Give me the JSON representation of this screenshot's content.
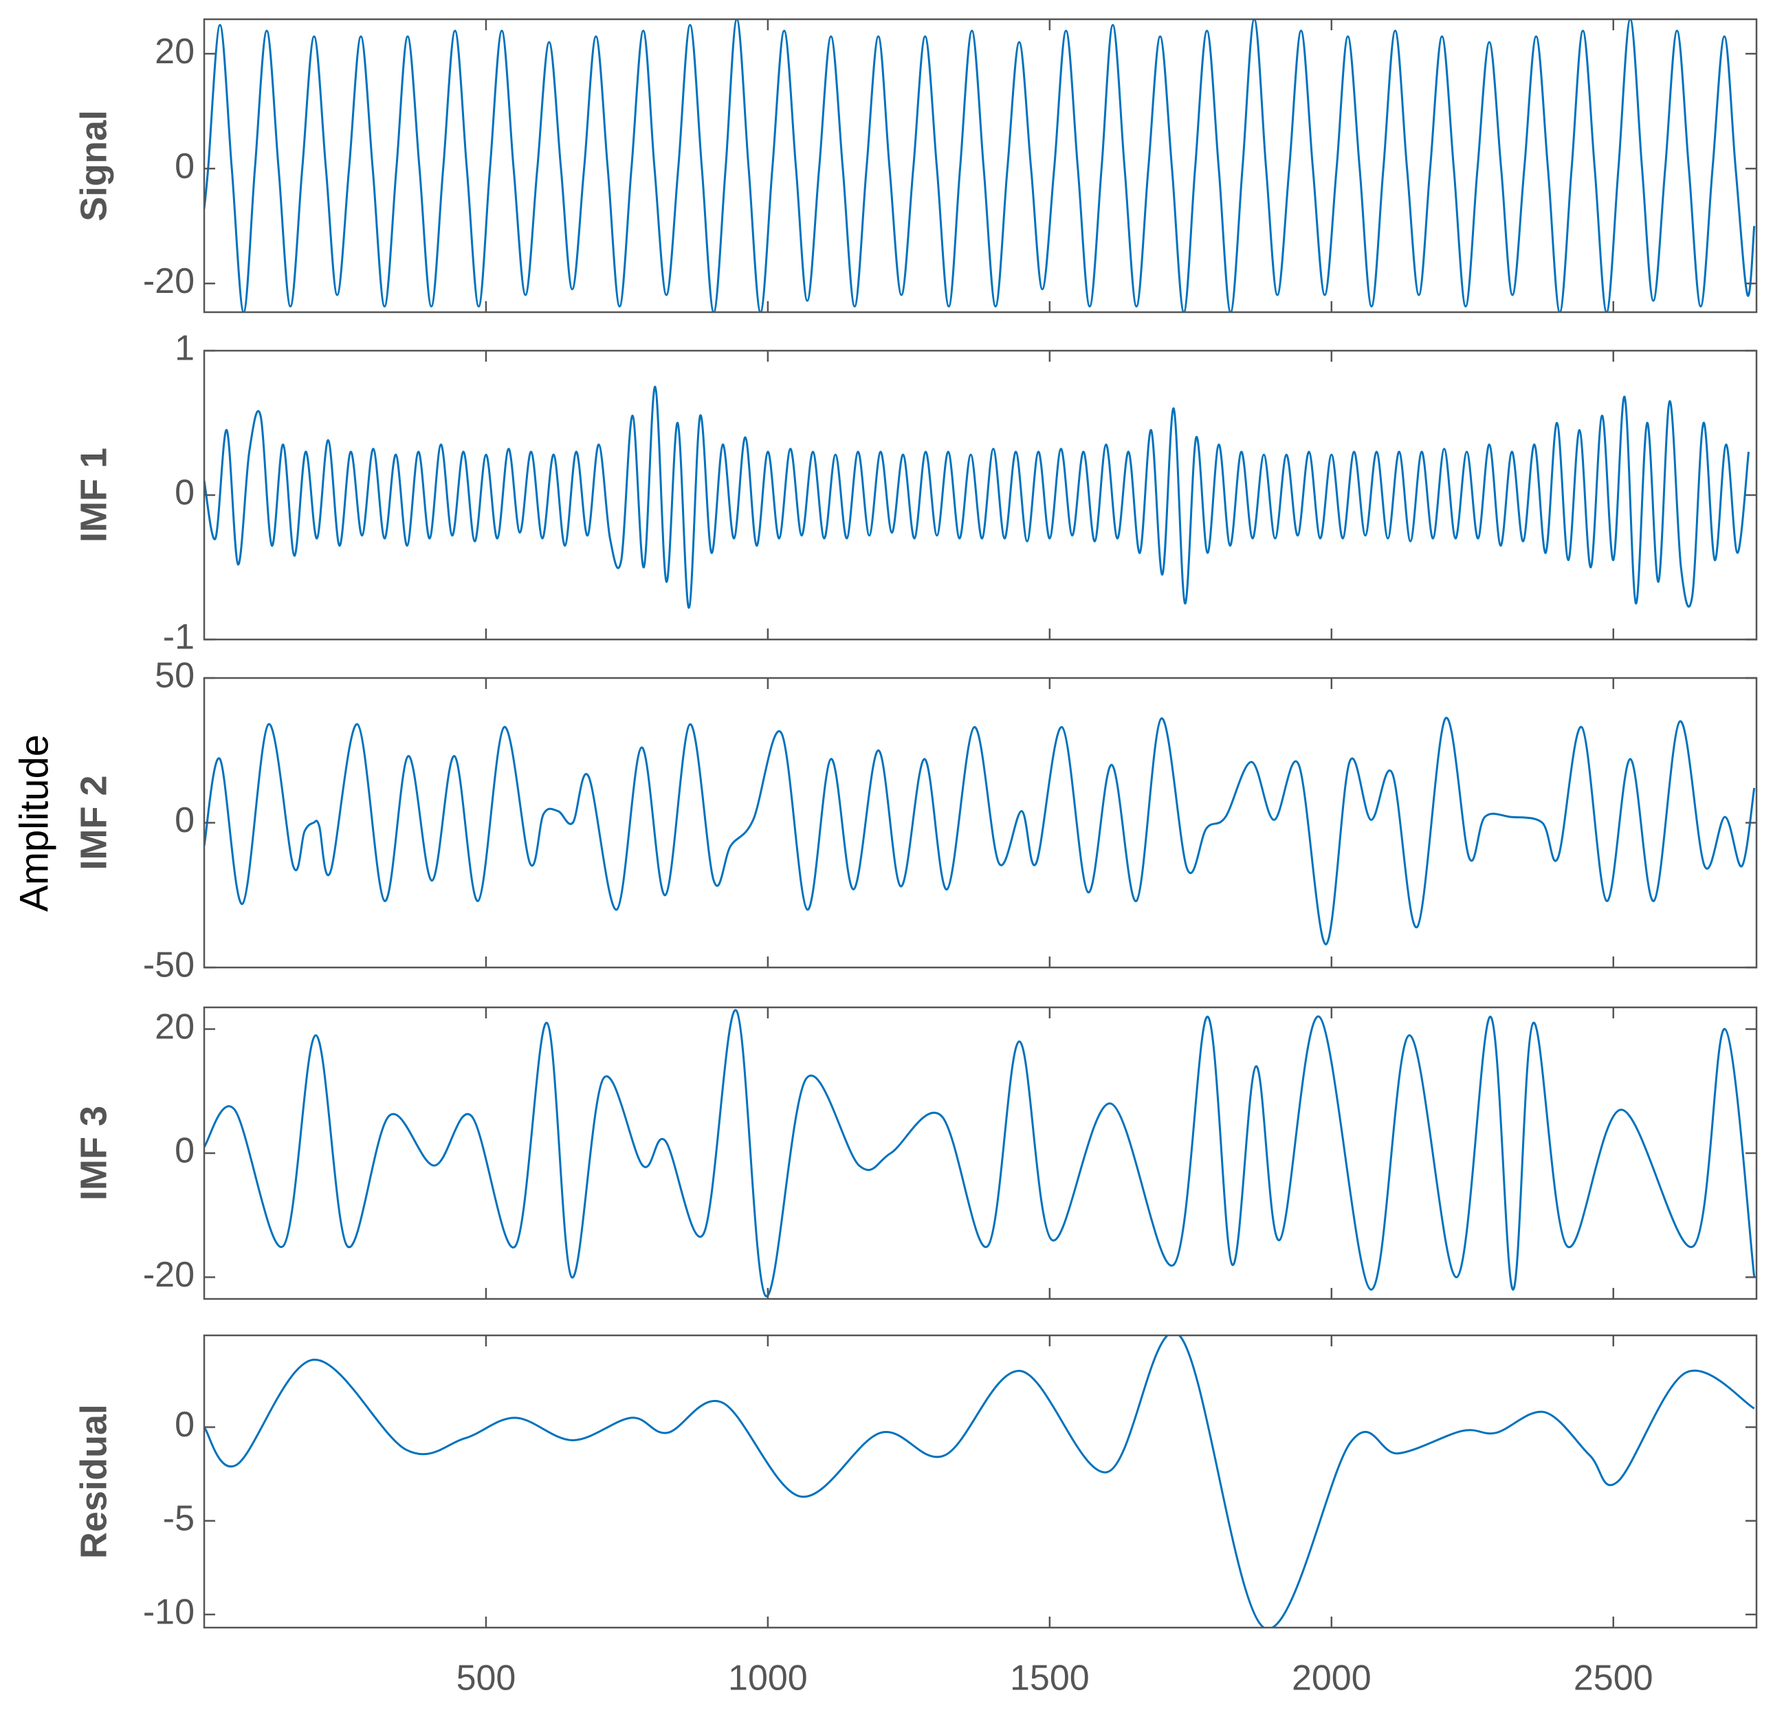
{
  "ylabel": "Amplitude",
  "chart_data": [
    {
      "type": "line",
      "ylabel": "Signal",
      "color": "#0072BD",
      "xlim": [
        0,
        2754
      ],
      "xticks": [
        500,
        1000,
        1500,
        2000,
        2500
      ],
      "ylim": [
        -25,
        26
      ],
      "yticks": [
        -20,
        0,
        20
      ],
      "x": [
        0,
        7,
        28,
        49,
        70,
        90,
        111,
        132,
        153,
        174,
        195,
        216,
        236,
        257,
        278,
        299,
        320,
        341,
        361,
        382,
        403,
        424,
        445,
        466,
        487,
        507,
        528,
        549,
        570,
        591,
        612,
        633,
        653,
        674,
        695,
        716,
        737,
        758,
        779,
        799,
        820,
        841,
        862,
        883,
        904,
        925,
        945,
        966,
        987,
        1008,
        1029,
        1050,
        1070,
        1091,
        1112,
        1133,
        1154,
        1175,
        1196,
        1216,
        1237,
        1258,
        1279,
        1300,
        1321,
        1341,
        1362,
        1383,
        1404,
        1425,
        1446,
        1467,
        1487,
        1508,
        1529,
        1550,
        1571,
        1592,
        1612,
        1633,
        1654,
        1675,
        1696,
        1717,
        1738,
        1758,
        1779,
        1800,
        1821,
        1842,
        1863,
        1884,
        1904,
        1925,
        1946,
        1967,
        1988,
        2009,
        2029,
        2050,
        2071,
        2092,
        2113,
        2134,
        2155,
        2175,
        2196,
        2217,
        2238,
        2259,
        2280,
        2301,
        2321,
        2342,
        2363,
        2384,
        2405,
        2426,
        2446,
        2467,
        2488,
        2509,
        2530,
        2551,
        2571,
        2592,
        2613,
        2634,
        2655,
        2676,
        2697,
        2717,
        2738,
        2750
      ],
      "values": [
        -7,
        0,
        25,
        0,
        -25,
        0,
        24,
        0,
        -24,
        0,
        23,
        0,
        -22,
        0,
        23,
        0,
        -24,
        0,
        23,
        0,
        -24,
        0,
        24,
        0,
        -24,
        0,
        24,
        0,
        -22,
        0,
        22,
        0,
        -21,
        0,
        23,
        0,
        -24,
        0,
        24,
        0,
        -22,
        0,
        25,
        0,
        -25,
        0,
        26,
        0,
        -25,
        0,
        24,
        0,
        -23,
        0,
        23,
        0,
        -24,
        0,
        23,
        0,
        -22,
        0,
        23,
        0,
        -24,
        0,
        24,
        0,
        -24,
        0,
        22,
        0,
        -21,
        0,
        24,
        0,
        -24,
        0,
        25,
        0,
        -24,
        0,
        23,
        0,
        -25,
        0,
        24,
        0,
        -25,
        0,
        26,
        0,
        -22,
        0,
        24,
        0,
        -22,
        0,
        23,
        0,
        -24,
        0,
        24,
        0,
        -22,
        0,
        23,
        0,
        -24,
        0,
        22,
        0,
        -22,
        0,
        23,
        0,
        -25,
        0,
        24,
        0,
        -25,
        0,
        26,
        0,
        -23,
        0,
        24,
        0,
        -24,
        0,
        23,
        0,
        -22,
        -10
      ]
    },
    {
      "type": "line",
      "ylabel": "IMF 1",
      "color": "#0072BD",
      "xlim": [
        0,
        2754
      ],
      "xticks": [
        500,
        1000,
        1500,
        2000,
        2500
      ],
      "ylim": [
        -1,
        1
      ],
      "yticks": [
        -1,
        0,
        1
      ],
      "x": [
        0,
        20,
        40,
        60,
        80,
        100,
        120,
        140,
        160,
        180,
        200,
        220,
        240,
        260,
        280,
        300,
        320,
        340,
        360,
        380,
        400,
        420,
        440,
        460,
        480,
        500,
        520,
        540,
        560,
        580,
        600,
        620,
        640,
        660,
        680,
        700,
        720,
        740,
        760,
        780,
        800,
        820,
        840,
        860,
        880,
        900,
        920,
        940,
        960,
        980,
        1000,
        1020,
        1040,
        1060,
        1080,
        1100,
        1120,
        1140,
        1160,
        1180,
        1200,
        1220,
        1240,
        1260,
        1280,
        1300,
        1320,
        1340,
        1360,
        1380,
        1400,
        1420,
        1440,
        1460,
        1480,
        1500,
        1520,
        1540,
        1560,
        1580,
        1600,
        1620,
        1640,
        1660,
        1680,
        1700,
        1720,
        1740,
        1760,
        1780,
        1800,
        1820,
        1840,
        1860,
        1880,
        1900,
        1920,
        1940,
        1960,
        1980,
        2000,
        2020,
        2040,
        2060,
        2080,
        2100,
        2120,
        2140,
        2160,
        2180,
        2200,
        2220,
        2240,
        2260,
        2280,
        2300,
        2320,
        2340,
        2360,
        2380,
        2400,
        2420,
        2440,
        2460,
        2480,
        2500,
        2520,
        2540,
        2560,
        2580,
        2600,
        2620,
        2640,
        2660,
        2680,
        2700,
        2720,
        2740
      ],
      "values": [
        0.1,
        -0.3,
        0.45,
        -0.48,
        0.3,
        0.55,
        -0.35,
        0.35,
        -0.42,
        0.3,
        -0.3,
        0.38,
        -0.35,
        0.3,
        -0.28,
        0.32,
        -0.3,
        0.28,
        -0.35,
        0.3,
        -0.3,
        0.35,
        -0.28,
        0.3,
        -0.32,
        0.28,
        -0.3,
        0.32,
        -0.26,
        0.3,
        -0.3,
        0.28,
        -0.35,
        0.3,
        -0.28,
        0.35,
        -0.3,
        -0.45,
        0.55,
        -0.5,
        0.75,
        -0.6,
        0.5,
        -0.78,
        0.55,
        -0.4,
        0.35,
        -0.3,
        0.4,
        -0.35,
        0.3,
        -0.3,
        0.32,
        -0.28,
        0.3,
        -0.3,
        0.28,
        -0.3,
        0.3,
        -0.28,
        0.3,
        -0.26,
        0.28,
        -0.3,
        0.3,
        -0.28,
        0.3,
        -0.3,
        0.28,
        -0.3,
        0.32,
        -0.3,
        0.3,
        -0.32,
        0.3,
        -0.3,
        0.32,
        -0.28,
        0.3,
        -0.32,
        0.35,
        -0.3,
        0.3,
        -0.4,
        0.45,
        -0.55,
        0.6,
        -0.75,
        0.4,
        -0.4,
        0.35,
        -0.35,
        0.3,
        -0.3,
        0.28,
        -0.3,
        0.28,
        -0.28,
        0.3,
        -0.3,
        0.28,
        -0.3,
        0.3,
        -0.28,
        0.3,
        -0.3,
        0.3,
        -0.32,
        0.3,
        -0.3,
        0.32,
        -0.3,
        0.3,
        -0.3,
        0.35,
        -0.35,
        0.3,
        -0.32,
        0.35,
        -0.4,
        0.5,
        -0.45,
        0.45,
        -0.5,
        0.55,
        -0.45,
        0.68,
        -0.75,
        0.5,
        -0.6,
        0.65,
        -0.5,
        -0.7,
        0.5,
        -0.45,
        0.35,
        -0.4,
        0.3
      ]
    },
    {
      "type": "line",
      "ylabel": "IMF 2",
      "color": "#0072BD",
      "xlim": [
        0,
        2754
      ],
      "xticks": [
        500,
        1000,
        1500,
        2000,
        2500
      ],
      "ylim": [
        -50,
        50
      ],
      "yticks": [
        -50,
        0,
        50
      ],
      "x": [
        0,
        28,
        68,
        114,
        158,
        178,
        194,
        204,
        224,
        272,
        320,
        362,
        404,
        444,
        486,
        532,
        578,
        602,
        628,
        654,
        682,
        732,
        776,
        818,
        862,
        904,
        934,
        974,
        1024,
        1070,
        1112,
        1152,
        1196,
        1236,
        1278,
        1318,
        1366,
        1410,
        1450,
        1476,
        1522,
        1568,
        1610,
        1654,
        1698,
        1744,
        1778,
        1812,
        1858,
        1898,
        1942,
        1990,
        2032,
        2070,
        2108,
        2152,
        2202,
        2244,
        2272,
        2318,
        2374,
        2402,
        2444,
        2488,
        2530,
        2572,
        2618,
        2662,
        2698,
        2728,
        2750
      ],
      "values": [
        -8,
        22,
        -28,
        34,
        -15,
        -3,
        0,
        -1,
        -17,
        34,
        -27,
        23,
        -20,
        23,
        -27,
        33,
        -14,
        3,
        4,
        0,
        16,
        -30,
        26,
        -25,
        34,
        -20,
        -8,
        1,
        31,
        -30,
        22,
        -23,
        25,
        -22,
        22,
        -23,
        33,
        -14,
        4,
        -14,
        33,
        -24,
        20,
        -27,
        36,
        -16,
        -2,
        2,
        21,
        1,
        20,
        -42,
        21,
        1,
        17,
        -36,
        36,
        -12,
        2,
        2,
        0,
        -12,
        33,
        -27,
        22,
        -27,
        35,
        -15,
        2,
        -15,
        12
      ]
    },
    {
      "type": "line",
      "ylabel": "IMF 3",
      "color": "#0072BD",
      "xlim": [
        0,
        2754
      ],
      "xticks": [
        500,
        1000,
        1500,
        2000,
        2500
      ],
      "ylim": [
        -23.5,
        23.5
      ],
      "yticks": [
        -20,
        0,
        20
      ],
      "x": [
        0,
        54,
        140,
        198,
        254,
        328,
        408,
        474,
        552,
        608,
        652,
        708,
        778,
        818,
        886,
        944,
        996,
        1068,
        1162,
        1218,
        1308,
        1390,
        1446,
        1504,
        1608,
        1720,
        1780,
        1824,
        1866,
        1908,
        1978,
        2070,
        2138,
        2222,
        2282,
        2322,
        2358,
        2418,
        2514,
        2642,
        2698,
        2750
      ],
      "values": [
        1,
        7,
        -15,
        19,
        -15,
        6,
        -2,
        6,
        -15,
        21,
        -20,
        12,
        -2,
        2,
        -13,
        23,
        -23,
        12,
        -2,
        0,
        6,
        -15,
        18,
        -14,
        8,
        -18,
        22,
        -18,
        14,
        -14,
        22,
        -22,
        19,
        -20,
        22,
        -22,
        21,
        -15,
        7,
        -15,
        20,
        -20
      ]
    },
    {
      "type": "line",
      "ylabel": "Residual",
      "color": "#0072BD",
      "xlim": [
        0,
        2754
      ],
      "xticks": [
        500,
        1000,
        1500,
        2000,
        2500
      ],
      "ylim": [
        -10.7,
        4.9
      ],
      "yticks": [
        -10,
        -5,
        0
      ],
      "x": [
        0,
        58,
        194,
        358,
        462,
        552,
        654,
        758,
        822,
        920,
        1058,
        1200,
        1314,
        1448,
        1602,
        1730,
        1880,
        2034,
        2118,
        2232,
        2292,
        2378,
        2458,
        2508,
        2628,
        2750
      ],
      "values": [
        0,
        -2,
        3.6,
        -1.2,
        -0.6,
        0.5,
        -0.7,
        0.5,
        -0.3,
        1.3,
        -3.7,
        -0.3,
        -1.5,
        3,
        -2.4,
        4.9,
        -10.7,
        -0.8,
        -1.4,
        -0.2,
        -0.3,
        0.8,
        -1.5,
        -2.9,
        2.9,
        1
      ]
    }
  ]
}
